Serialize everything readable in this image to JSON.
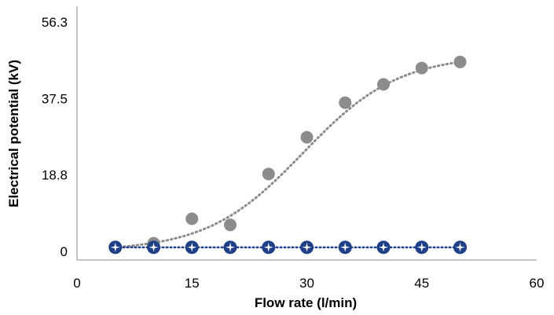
{
  "chart_data": {
    "type": "scatter",
    "title": "",
    "xlabel": "Flow rate (l/min)",
    "ylabel": "Electrical potential (kV)",
    "xlim": [
      0,
      60
    ],
    "ylim": [
      0,
      56.3
    ],
    "xticks": [
      "0",
      "15",
      "30",
      "45",
      "60"
    ],
    "xtick_values": [
      0,
      15,
      30,
      45,
      60
    ],
    "yticks": [
      "0",
      "18.8",
      "37.5",
      "56.3"
    ],
    "ytick_values": [
      0,
      18.8,
      37.5,
      56.3
    ],
    "grid": false,
    "legend": "none",
    "series": [
      {
        "marker": "circle",
        "color": "#8c8c8c",
        "trendline": "dotted sigmoid",
        "trend_color": "#8c8c8c",
        "x": [
          5,
          10,
          15,
          20,
          25,
          30,
          35,
          40,
          45,
          50
        ],
        "y": [
          1,
          2,
          8,
          6.5,
          19,
          28,
          36.5,
          41,
          45,
          46.5
        ]
      },
      {
        "marker": "star-in-circle",
        "color": "#1f3f87",
        "trendline": "dotted linear",
        "trend_color": "#1f3f87",
        "x": [
          5,
          10,
          15,
          20,
          25,
          30,
          35,
          40,
          45,
          50
        ],
        "y": [
          1,
          1,
          1,
          1,
          1,
          1,
          1,
          1,
          1,
          1
        ]
      }
    ]
  }
}
